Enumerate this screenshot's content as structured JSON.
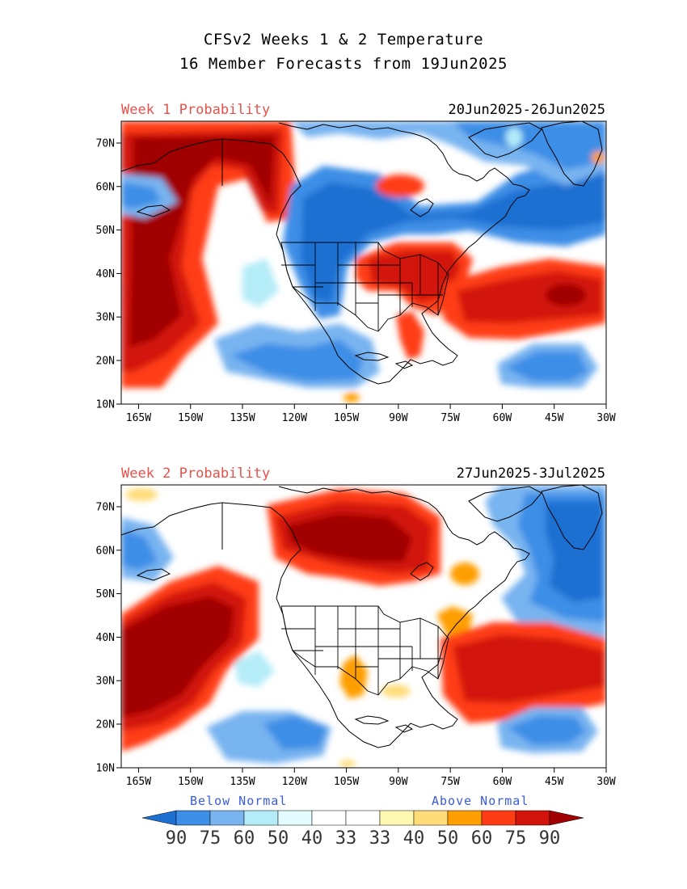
{
  "title": {
    "line1": "CFSv2 Weeks 1 & 2 Temperature",
    "line2": "16 Member Forecasts from 19Jun2025"
  },
  "panels": [
    {
      "label": "Week 1 Probability",
      "dates": "20Jun2025-26Jun2025"
    },
    {
      "label": "Week 2 Probability",
      "dates": "27Jun2025-3Jul2025"
    }
  ],
  "axes": {
    "lat_labels": [
      "70N",
      "60N",
      "50N",
      "40N",
      "30N",
      "20N",
      "10N"
    ],
    "lon_labels": [
      "165W",
      "150W",
      "135W",
      "120W",
      "105W",
      "90W",
      "75W",
      "60W",
      "45W",
      "30W"
    ]
  },
  "legend": {
    "below_label": "Below Normal",
    "above_label": "Above Normal",
    "numbers": [
      "90",
      "75",
      "60",
      "50",
      "40",
      "33",
      "33",
      "40",
      "50",
      "60",
      "75",
      "90"
    ],
    "colors": [
      "#1e6fd2",
      "#3c8ee6",
      "#78b4f0",
      "#b4ecf8",
      "#e2fbfd",
      "#ffffff",
      "#ffffff",
      "#fff8b0",
      "#ffdc78",
      "#ff9e00",
      "#ff3c14",
      "#d2140a",
      "#a00000"
    ]
  },
  "field_colors": {
    "deep_blue": "#1e6fd2",
    "blue": "#3c8ee6",
    "light_blue": "#78b4f0",
    "cyan": "#b4ecf8",
    "pale": "#e2fbfd",
    "yellow": "#fff8b0",
    "gold": "#ffdc78",
    "orange": "#ff9e00",
    "red_orange": "#ff3c14",
    "red": "#d2140a",
    "dark_red": "#a00000"
  }
}
